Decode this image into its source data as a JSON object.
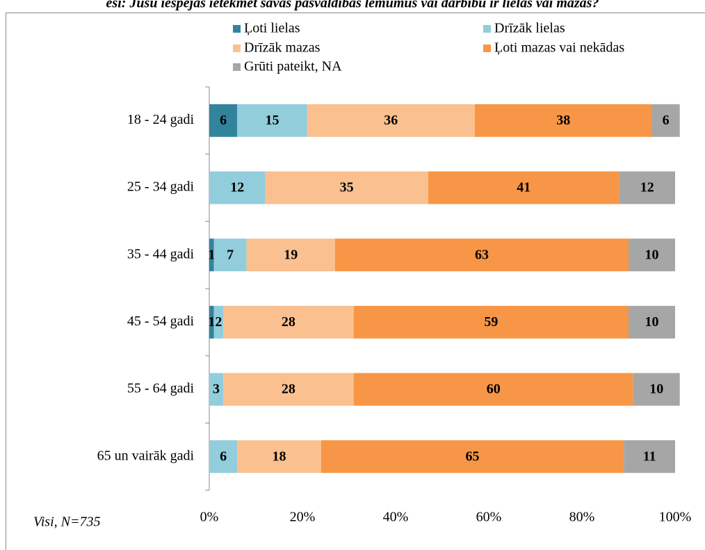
{
  "chart_data": {
    "type": "stacked_barh",
    "title": "ēsi: Jūsu iespējas ietekmēt savas pašvaldības lēmumus vai darbību ir lielas vai mazas?",
    "categories": [
      "18 - 24 gadi",
      "25 - 34 gadi",
      "35 - 44 gadi",
      "45 - 54 gadi",
      "55 - 64 gadi",
      "65 un vairāk gadi"
    ],
    "series": [
      {
        "name": "Ļoti lielas",
        "color": "#31849b",
        "values": [
          6,
          null,
          1,
          1,
          null,
          null
        ]
      },
      {
        "name": "Drīzāk lielas",
        "color": "#92cddc",
        "values": [
          15,
          12,
          7,
          2,
          3,
          6
        ]
      },
      {
        "name": "Drīzāk mazas",
        "color": "#fac090",
        "values": [
          36,
          35,
          19,
          28,
          28,
          18
        ]
      },
      {
        "name": "Ļoti mazas vai nekādas",
        "color": "#f79646",
        "values": [
          38,
          41,
          63,
          59,
          60,
          65
        ]
      },
      {
        "name": "Grūti pateikt, NA",
        "color": "#a6a6a6",
        "values": [
          6,
          12,
          10,
          10,
          10,
          11
        ]
      }
    ],
    "xlim": [
      0,
      100
    ],
    "xticks": [
      {
        "value": 0,
        "label": "0%"
      },
      {
        "value": 20,
        "label": "20%"
      },
      {
        "value": 40,
        "label": "40%"
      },
      {
        "value": 60,
        "label": "60%"
      },
      {
        "value": 80,
        "label": "80%"
      },
      {
        "value": 100,
        "label": "100%"
      }
    ],
    "note": "Visi, N=735",
    "legend": "top"
  }
}
